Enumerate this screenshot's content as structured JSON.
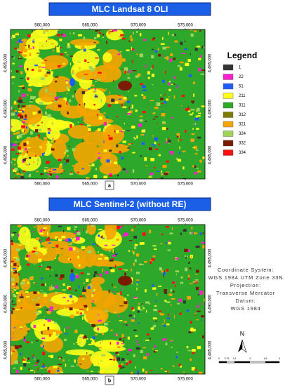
{
  "panels": [
    {
      "title": "MLC Landsat 8 OLI",
      "label": "a",
      "x_ticks": [
        "560,000",
        "565,000",
        "570,000",
        "575,000"
      ],
      "y_ticks": [
        "4,495,000",
        "4,490,000",
        "4,485,000"
      ]
    },
    {
      "title": "MLC Sentinel-2 (without RE)",
      "label": "b",
      "x_ticks": [
        "560,000",
        "565,000",
        "570,000",
        "575,000"
      ],
      "y_ticks": [
        "4,495,000",
        "4,490,000",
        "4,485,000"
      ]
    }
  ],
  "legend": {
    "title": "Legend",
    "items": [
      {
        "label": "1",
        "color": "#333333"
      },
      {
        "label": "22",
        "color": "#ff1fcf"
      },
      {
        "label": "51",
        "color": "#1f5cff"
      },
      {
        "label": "211",
        "color": "#ffff1a"
      },
      {
        "label": "311",
        "color": "#2ea82a"
      },
      {
        "label": "312",
        "color": "#7f7a00"
      },
      {
        "label": "321",
        "color": "#f5a400"
      },
      {
        "label": "324",
        "color": "#9fd65a"
      },
      {
        "label": "332",
        "color": "#7a1c05"
      },
      {
        "label": "334",
        "color": "#ff1010"
      }
    ]
  },
  "coordinate_system": [
    "Coordinate System:",
    "WGS 1984 UTM Zone 33N",
    "Projection:",
    "Transverse Mercator",
    "Datum:",
    "WGS 1984"
  ],
  "north_arrow": "N",
  "scale_bar": [
    "0",
    "0.75",
    "1.5",
    "3",
    "4.5",
    "6"
  ]
}
